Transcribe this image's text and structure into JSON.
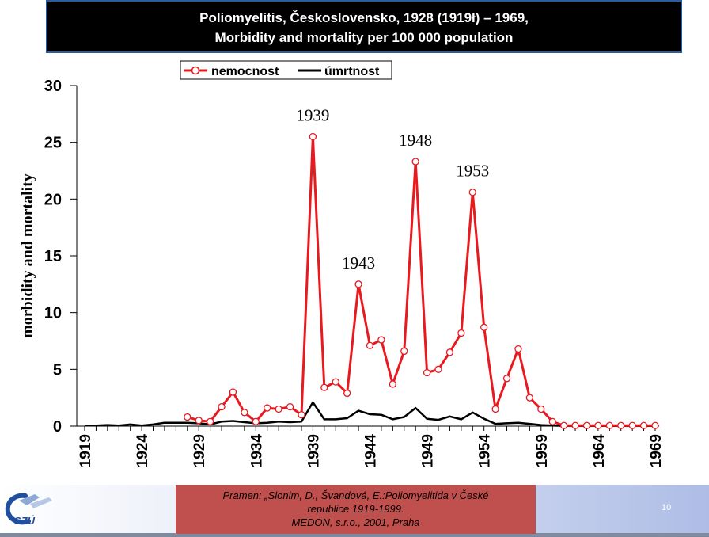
{
  "title": {
    "line1": "Poliomyelitis, Československo, 1928 (1919ł) – 1969,",
    "line2": "Morbidity and mortality per 100 000 population"
  },
  "source": {
    "line1": "Pramen: „Slonim, D., Švandová, E.:Poliomyelitida v České",
    "line2": "republice 1919-1999.",
    "line3": "MEDON, s.r.o., 2001, Praha"
  },
  "logo_text": "SZÚ",
  "page_number": "10",
  "colors": {
    "nemocnost": "#e8191f",
    "umrtnost": "#000000",
    "title_bg": "#000000",
    "source_bg": "#c0504d"
  },
  "chart_data": {
    "type": "line",
    "ylabel": "morbidity and mortality",
    "xlabel": "",
    "ylim": [
      0,
      30
    ],
    "yticks": [
      0,
      5,
      10,
      15,
      20,
      25,
      30
    ],
    "xlim": [
      1919,
      1969
    ],
    "xticks": [
      1919,
      1924,
      1929,
      1934,
      1939,
      1944,
      1949,
      1954,
      1959,
      1964,
      1969
    ],
    "grid": false,
    "legend_position": "top",
    "annotations": [
      {
        "label": "1939",
        "x": 1939,
        "y": 25.5
      },
      {
        "label": "1943",
        "x": 1943,
        "y": 12.5
      },
      {
        "label": "1948",
        "x": 1948,
        "y": 23.3
      },
      {
        "label": "1953",
        "x": 1953,
        "y": 20.6
      }
    ],
    "series": [
      {
        "name": "nemocnost",
        "marker": "circle",
        "x": [
          1928,
          1929,
          1930,
          1931,
          1932,
          1933,
          1934,
          1935,
          1936,
          1937,
          1938,
          1939,
          1940,
          1941,
          1942,
          1943,
          1944,
          1945,
          1946,
          1947,
          1948,
          1949,
          1950,
          1951,
          1952,
          1953,
          1954,
          1955,
          1956,
          1957,
          1958,
          1959,
          1960,
          1961,
          1962,
          1963,
          1964,
          1965,
          1966,
          1967,
          1968,
          1969
        ],
        "values": [
          0.8,
          0.5,
          0.4,
          1.7,
          3.0,
          1.2,
          0.4,
          1.6,
          1.5,
          1.7,
          1.0,
          25.5,
          3.4,
          3.9,
          2.9,
          12.5,
          7.1,
          7.6,
          3.7,
          6.6,
          23.3,
          4.7,
          5.0,
          6.5,
          8.2,
          20.6,
          8.7,
          1.5,
          4.2,
          6.8,
          2.5,
          1.5,
          0.4,
          0.05,
          0.05,
          0.05,
          0.05,
          0.05,
          0.05,
          0.05,
          0.05,
          0.05
        ]
      },
      {
        "name": "úmrtnost",
        "marker": "none",
        "x": [
          1919,
          1920,
          1921,
          1922,
          1923,
          1924,
          1925,
          1926,
          1927,
          1928,
          1929,
          1930,
          1931,
          1932,
          1933,
          1934,
          1935,
          1936,
          1937,
          1938,
          1939,
          1940,
          1941,
          1942,
          1943,
          1944,
          1945,
          1946,
          1947,
          1948,
          1949,
          1950,
          1951,
          1952,
          1953,
          1954,
          1955,
          1956,
          1957,
          1958,
          1959,
          1960,
          1961,
          1962,
          1963,
          1964,
          1965,
          1966,
          1967,
          1968,
          1969
        ],
        "values": [
          0.05,
          0.05,
          0.1,
          0.05,
          0.15,
          0.05,
          0.15,
          0.3,
          0.3,
          0.3,
          0.25,
          0.15,
          0.4,
          0.45,
          0.35,
          0.25,
          0.3,
          0.4,
          0.35,
          0.4,
          2.1,
          0.6,
          0.6,
          0.7,
          1.35,
          1.05,
          1.0,
          0.6,
          0.8,
          1.6,
          0.65,
          0.55,
          0.85,
          0.6,
          1.2,
          0.65,
          0.2,
          0.25,
          0.3,
          0.2,
          0.1,
          0.05,
          0.02,
          0.02,
          0.02,
          0.02,
          0.02,
          0.02,
          0.02,
          0.02,
          0.02
        ]
      }
    ]
  }
}
